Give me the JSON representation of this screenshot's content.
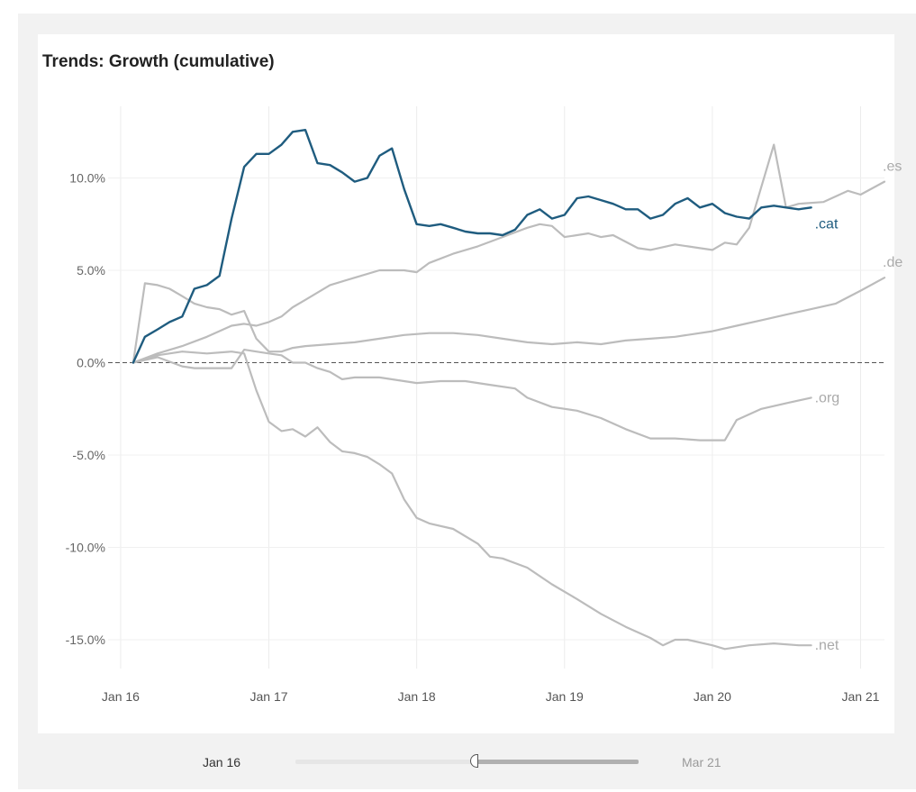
{
  "chart_data": {
    "type": "line",
    "title": "Trends: Growth (cumulative)",
    "xlabel": "",
    "ylabel": "",
    "x_range": [
      "2015-12-01",
      "2021-03-01"
    ],
    "y_range": [
      -16.6,
      14.0
    ],
    "x_ticks": [
      "Jan 16",
      "Jan 17",
      "Jan 18",
      "Jan 19",
      "Jan 20",
      "Jan 21"
    ],
    "y_ticks": [
      "10.0%",
      "5.0%",
      "0.0%",
      "-5.0%",
      "-10.0%",
      "-15.0%"
    ],
    "grid": true,
    "reference_line": 0,
    "colors": {
      "highlight": "#1f5c7f",
      "other": "#bcbcbc",
      "label_other": "#aaaaaa"
    },
    "series": [
      {
        "name": ".cat",
        "highlight": true,
        "points": [
          [
            "2016-02-01",
            0.0
          ],
          [
            "2016-03-01",
            1.4
          ],
          [
            "2016-04-01",
            1.8
          ],
          [
            "2016-05-01",
            2.2
          ],
          [
            "2016-06-01",
            2.5
          ],
          [
            "2016-07-01",
            4.0
          ],
          [
            "2016-08-01",
            4.2
          ],
          [
            "2016-09-01",
            4.7
          ],
          [
            "2016-10-01",
            7.8
          ],
          [
            "2016-11-01",
            10.6
          ],
          [
            "2016-12-01",
            11.3
          ],
          [
            "2017-01-01",
            11.3
          ],
          [
            "2017-02-01",
            11.8
          ],
          [
            "2017-03-01",
            12.5
          ],
          [
            "2017-04-01",
            12.6
          ],
          [
            "2017-05-01",
            10.8
          ],
          [
            "2017-06-01",
            10.7
          ],
          [
            "2017-07-01",
            10.3
          ],
          [
            "2017-08-01",
            9.8
          ],
          [
            "2017-09-01",
            10.0
          ],
          [
            "2017-10-01",
            11.2
          ],
          [
            "2017-11-01",
            11.6
          ],
          [
            "2017-12-01",
            9.4
          ],
          [
            "2018-01-01",
            7.5
          ],
          [
            "2018-02-01",
            7.4
          ],
          [
            "2018-03-01",
            7.5
          ],
          [
            "2018-04-01",
            7.3
          ],
          [
            "2018-05-01",
            7.1
          ],
          [
            "2018-06-01",
            7.0
          ],
          [
            "2018-07-01",
            7.0
          ],
          [
            "2018-08-01",
            6.9
          ],
          [
            "2018-09-01",
            7.2
          ],
          [
            "2018-10-01",
            8.0
          ],
          [
            "2018-11-01",
            8.3
          ],
          [
            "2018-12-01",
            7.8
          ],
          [
            "2019-01-01",
            8.0
          ],
          [
            "2019-02-01",
            8.9
          ],
          [
            "2019-03-01",
            9.0
          ],
          [
            "2019-04-01",
            8.8
          ],
          [
            "2019-05-01",
            8.6
          ],
          [
            "2019-06-01",
            8.3
          ],
          [
            "2019-07-01",
            8.3
          ],
          [
            "2019-08-01",
            7.8
          ],
          [
            "2019-09-01",
            8.0
          ],
          [
            "2019-10-01",
            8.6
          ],
          [
            "2019-11-01",
            8.9
          ],
          [
            "2019-12-01",
            8.4
          ],
          [
            "2020-01-01",
            8.6
          ],
          [
            "2020-02-01",
            8.1
          ],
          [
            "2020-03-01",
            7.9
          ],
          [
            "2020-04-01",
            7.8
          ],
          [
            "2020-05-01",
            8.4
          ],
          [
            "2020-06-01",
            8.5
          ],
          [
            "2020-07-01",
            8.4
          ],
          [
            "2020-08-01",
            8.3
          ],
          [
            "2020-09-01",
            8.4
          ]
        ]
      },
      {
        "name": ".es",
        "highlight": false,
        "points": [
          [
            "2016-02-01",
            0.0
          ],
          [
            "2016-04-01",
            0.5
          ],
          [
            "2016-06-01",
            0.9
          ],
          [
            "2016-08-01",
            1.4
          ],
          [
            "2016-10-01",
            2.0
          ],
          [
            "2016-11-01",
            2.1
          ],
          [
            "2016-12-01",
            2.0
          ],
          [
            "2017-01-01",
            2.2
          ],
          [
            "2017-02-01",
            2.5
          ],
          [
            "2017-03-01",
            3.0
          ],
          [
            "2017-04-01",
            3.4
          ],
          [
            "2017-06-01",
            4.2
          ],
          [
            "2017-08-01",
            4.6
          ],
          [
            "2017-10-01",
            5.0
          ],
          [
            "2017-12-01",
            5.0
          ],
          [
            "2018-01-01",
            4.9
          ],
          [
            "2018-02-01",
            5.4
          ],
          [
            "2018-04-01",
            5.9
          ],
          [
            "2018-06-01",
            6.3
          ],
          [
            "2018-08-01",
            6.8
          ],
          [
            "2018-10-01",
            7.3
          ],
          [
            "2018-11-01",
            7.5
          ],
          [
            "2018-12-01",
            7.4
          ],
          [
            "2019-01-01",
            6.8
          ],
          [
            "2019-03-01",
            7.0
          ],
          [
            "2019-04-01",
            6.8
          ],
          [
            "2019-05-01",
            6.9
          ],
          [
            "2019-07-01",
            6.2
          ],
          [
            "2019-08-01",
            6.1
          ],
          [
            "2019-10-01",
            6.4
          ],
          [
            "2019-12-01",
            6.2
          ],
          [
            "2020-01-01",
            6.1
          ],
          [
            "2020-02-01",
            6.5
          ],
          [
            "2020-03-01",
            6.4
          ],
          [
            "2020-04-01",
            7.3
          ],
          [
            "2020-06-01",
            11.8
          ],
          [
            "2020-07-01",
            8.4
          ],
          [
            "2020-08-01",
            8.6
          ],
          [
            "2020-10-01",
            8.7
          ],
          [
            "2020-12-01",
            9.3
          ],
          [
            "2021-01-01",
            9.1
          ],
          [
            "2021-03-01",
            9.8
          ]
        ]
      },
      {
        "name": ".de",
        "highlight": false,
        "points": [
          [
            "2016-02-01",
            0.0
          ],
          [
            "2016-03-01",
            4.3
          ],
          [
            "2016-04-01",
            4.2
          ],
          [
            "2016-05-01",
            4.0
          ],
          [
            "2016-06-01",
            3.6
          ],
          [
            "2016-07-01",
            3.2
          ],
          [
            "2016-08-01",
            3.0
          ],
          [
            "2016-09-01",
            2.9
          ],
          [
            "2016-10-01",
            2.6
          ],
          [
            "2016-11-01",
            2.8
          ],
          [
            "2016-12-01",
            1.3
          ],
          [
            "2017-01-01",
            0.6
          ],
          [
            "2017-02-01",
            0.6
          ],
          [
            "2017-03-01",
            0.8
          ],
          [
            "2017-04-01",
            0.9
          ],
          [
            "2017-06-01",
            1.0
          ],
          [
            "2017-08-01",
            1.1
          ],
          [
            "2017-10-01",
            1.3
          ],
          [
            "2017-12-01",
            1.5
          ],
          [
            "2018-02-01",
            1.6
          ],
          [
            "2018-04-01",
            1.6
          ],
          [
            "2018-06-01",
            1.5
          ],
          [
            "2018-08-01",
            1.3
          ],
          [
            "2018-10-01",
            1.1
          ],
          [
            "2018-12-01",
            1.0
          ],
          [
            "2019-02-01",
            1.1
          ],
          [
            "2019-04-01",
            1.0
          ],
          [
            "2019-06-01",
            1.2
          ],
          [
            "2019-08-01",
            1.3
          ],
          [
            "2019-10-01",
            1.4
          ],
          [
            "2020-01-01",
            1.7
          ],
          [
            "2020-03-01",
            2.0
          ],
          [
            "2020-05-01",
            2.3
          ],
          [
            "2020-07-01",
            2.6
          ],
          [
            "2020-09-01",
            2.9
          ],
          [
            "2020-11-01",
            3.2
          ],
          [
            "2021-01-01",
            3.9
          ],
          [
            "2021-03-01",
            4.6
          ]
        ]
      },
      {
        "name": ".org",
        "highlight": false,
        "points": [
          [
            "2016-02-01",
            0.0
          ],
          [
            "2016-04-01",
            0.3
          ],
          [
            "2016-06-01",
            -0.2
          ],
          [
            "2016-07-01",
            -0.3
          ],
          [
            "2016-09-01",
            -0.3
          ],
          [
            "2016-10-01",
            -0.3
          ],
          [
            "2016-11-01",
            0.7
          ],
          [
            "2016-12-01",
            0.6
          ],
          [
            "2017-01-01",
            0.5
          ],
          [
            "2017-02-01",
            0.4
          ],
          [
            "2017-03-01",
            0.0
          ],
          [
            "2017-04-01",
            0.0
          ],
          [
            "2017-05-01",
            -0.3
          ],
          [
            "2017-06-01",
            -0.5
          ],
          [
            "2017-07-01",
            -0.9
          ],
          [
            "2017-08-01",
            -0.8
          ],
          [
            "2017-10-01",
            -0.8
          ],
          [
            "2017-12-01",
            -1.0
          ],
          [
            "2018-01-01",
            -1.1
          ],
          [
            "2018-03-01",
            -1.0
          ],
          [
            "2018-05-01",
            -1.0
          ],
          [
            "2018-07-01",
            -1.2
          ],
          [
            "2018-09-01",
            -1.4
          ],
          [
            "2018-10-01",
            -1.9
          ],
          [
            "2018-12-01",
            -2.4
          ],
          [
            "2019-02-01",
            -2.6
          ],
          [
            "2019-04-01",
            -3.0
          ],
          [
            "2019-06-01",
            -3.6
          ],
          [
            "2019-08-01",
            -4.1
          ],
          [
            "2019-10-01",
            -4.1
          ],
          [
            "2019-12-01",
            -4.2
          ],
          [
            "2020-02-01",
            -4.2
          ],
          [
            "2020-03-01",
            -3.1
          ],
          [
            "2020-05-01",
            -2.5
          ],
          [
            "2020-07-01",
            -2.2
          ],
          [
            "2020-09-01",
            -1.9
          ]
        ]
      },
      {
        "name": ".net",
        "highlight": false,
        "points": [
          [
            "2016-02-01",
            0.0
          ],
          [
            "2016-04-01",
            0.4
          ],
          [
            "2016-06-01",
            0.6
          ],
          [
            "2016-08-01",
            0.5
          ],
          [
            "2016-10-01",
            0.6
          ],
          [
            "2016-11-01",
            0.5
          ],
          [
            "2016-12-01",
            -1.5
          ],
          [
            "2017-01-01",
            -3.2
          ],
          [
            "2017-02-01",
            -3.7
          ],
          [
            "2017-03-01",
            -3.6
          ],
          [
            "2017-04-01",
            -4.0
          ],
          [
            "2017-05-01",
            -3.5
          ],
          [
            "2017-06-01",
            -4.3
          ],
          [
            "2017-07-01",
            -4.8
          ],
          [
            "2017-08-01",
            -4.9
          ],
          [
            "2017-09-01",
            -5.1
          ],
          [
            "2017-10-01",
            -5.5
          ],
          [
            "2017-11-01",
            -6.0
          ],
          [
            "2017-12-01",
            -7.4
          ],
          [
            "2018-01-01",
            -8.4
          ],
          [
            "2018-02-01",
            -8.7
          ],
          [
            "2018-04-01",
            -9.0
          ],
          [
            "2018-06-01",
            -9.8
          ],
          [
            "2018-07-01",
            -10.5
          ],
          [
            "2018-08-01",
            -10.6
          ],
          [
            "2018-10-01",
            -11.1
          ],
          [
            "2018-12-01",
            -12.0
          ],
          [
            "2019-02-01",
            -12.8
          ],
          [
            "2019-04-01",
            -13.6
          ],
          [
            "2019-06-01",
            -14.3
          ],
          [
            "2019-08-01",
            -14.9
          ],
          [
            "2019-09-01",
            -15.3
          ],
          [
            "2019-10-01",
            -15.0
          ],
          [
            "2019-11-01",
            -15.0
          ],
          [
            "2020-01-01",
            -15.3
          ],
          [
            "2020-02-01",
            -15.5
          ],
          [
            "2020-04-01",
            -15.3
          ],
          [
            "2020-06-01",
            -15.2
          ],
          [
            "2020-08-01",
            -15.3
          ],
          [
            "2020-09-01",
            -15.3
          ]
        ]
      }
    ]
  },
  "slider": {
    "start_label": "Jan 16",
    "end_label": "Mar 21",
    "value": 0.52
  }
}
